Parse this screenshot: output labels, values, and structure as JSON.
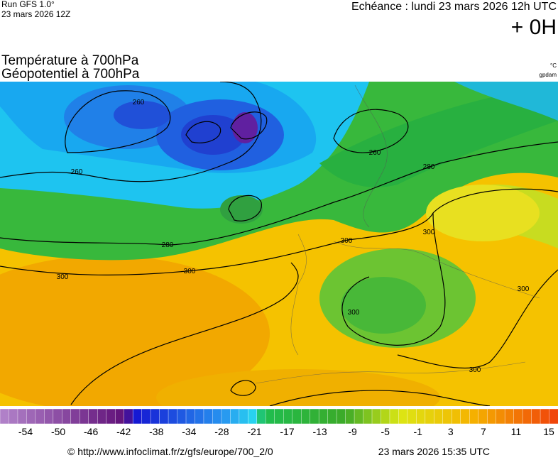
{
  "header": {
    "run": "Run GFS 1.0°",
    "run_date": "23 mars 2026 12Z",
    "echeance": "Echéance : lundi 23 mars 2026 12h UTC",
    "lead": "+ 0H"
  },
  "titles": [
    "Température à 700hPa",
    "Géopotentiel à 700hPa"
  ],
  "units": [
    "°C",
    "gpdam"
  ],
  "contour_labels": [
    260,
    260,
    260,
    280,
    280,
    300,
    300,
    300,
    300,
    300,
    300,
    300
  ],
  "colorbar": {
    "ticks": [
      -54,
      -50,
      -46,
      -42,
      -38,
      -34,
      -28,
      -21,
      -17,
      -13,
      -9,
      -5,
      -1,
      3,
      7,
      11,
      15
    ]
  },
  "footer": {
    "credit": "© http://www.infoclimat.fr/z/gfs/europe/700_2/0",
    "generated": "23 mars 2026 15:35 UTC"
  }
}
